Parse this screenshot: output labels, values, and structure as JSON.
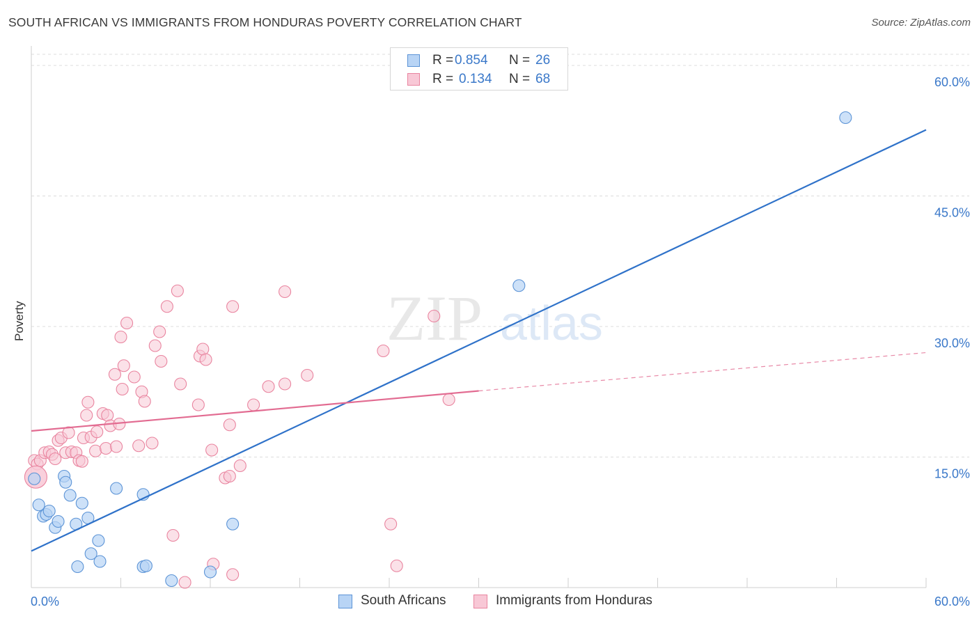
{
  "header": {
    "title": "SOUTH AFRICAN VS IMMIGRANTS FROM HONDURAS POVERTY CORRELATION CHART",
    "source": "Source: ZipAtlas.com"
  },
  "legend_top": {
    "rows": [
      {
        "r_label": "R =",
        "r_value": "0.854",
        "n_label": "N =",
        "n_value": "26"
      },
      {
        "r_label": "R =",
        "r_value": "0.134",
        "n_label": "N =",
        "n_value": "68"
      }
    ]
  },
  "legend_bottom": {
    "items": [
      {
        "label": "South Africans"
      },
      {
        "label": "Immigrants from Honduras"
      }
    ]
  },
  "colors": {
    "blue_fill": "#b8d4f5",
    "blue_stroke": "#5b93d6",
    "blue_line": "#2f72c9",
    "pink_fill": "#f8c8d6",
    "pink_stroke": "#e9849f",
    "pink_line": "#e26b91",
    "tick_label": "#3a78c9",
    "grid": "#dcdcdc",
    "watermark": "#e8e8e8"
  },
  "chart_data": {
    "type": "scatter",
    "title": "SOUTH AFRICAN VS IMMIGRANTS FROM HONDURAS POVERTY CORRELATION CHART",
    "xlabel": "",
    "ylabel": "Poverty",
    "xlim": [
      0,
      60
    ],
    "ylim": [
      0,
      60
    ],
    "x_tick_labels": [
      "0.0%",
      "60.0%"
    ],
    "y_tick_labels": [
      "15.0%",
      "30.0%",
      "45.0%",
      "60.0%"
    ],
    "y_ticks": [
      15,
      30,
      45,
      60
    ],
    "grid": true,
    "legend_position": "bottom",
    "watermark": "ZIPatlas",
    "series": [
      {
        "name": "South Africans",
        "r": 0.854,
        "n": 26,
        "trend": {
          "x": [
            0,
            60
          ],
          "y": [
            4.2,
            52.6
          ],
          "dashed_beyond": null
        },
        "points": [
          [
            0.2,
            12.5
          ],
          [
            0.5,
            9.5
          ],
          [
            0.8,
            8.2
          ],
          [
            1.0,
            8.4
          ],
          [
            1.2,
            8.8
          ],
          [
            1.6,
            6.9
          ],
          [
            1.8,
            7.6
          ],
          [
            2.2,
            12.8
          ],
          [
            2.3,
            12.1
          ],
          [
            2.6,
            10.6
          ],
          [
            3.0,
            7.3
          ],
          [
            3.4,
            9.7
          ],
          [
            3.8,
            8.0
          ],
          [
            3.1,
            2.4
          ],
          [
            4.0,
            3.9
          ],
          [
            4.5,
            5.4
          ],
          [
            4.6,
            3.0
          ],
          [
            5.7,
            11.4
          ],
          [
            7.5,
            10.7
          ],
          [
            7.5,
            2.4
          ],
          [
            7.7,
            2.5
          ],
          [
            9.4,
            0.8
          ],
          [
            12.0,
            1.8
          ],
          [
            13.5,
            7.3
          ],
          [
            32.7,
            34.7
          ],
          [
            54.6,
            54.0
          ]
        ]
      },
      {
        "name": "Immigrants from Honduras",
        "r": 0.134,
        "n": 68,
        "trend": {
          "x": [
            0,
            30
          ],
          "y": [
            18.0,
            22.6
          ],
          "dashed_x": [
            30,
            60
          ],
          "dashed_y": [
            22.6,
            27.0
          ]
        },
        "points": [
          [
            0.2,
            14.6
          ],
          [
            0.4,
            14.2
          ],
          [
            0.6,
            14.6
          ],
          [
            0.9,
            15.5
          ],
          [
            1.2,
            15.6
          ],
          [
            1.4,
            15.3
          ],
          [
            1.6,
            14.8
          ],
          [
            1.8,
            16.9
          ],
          [
            2.0,
            17.2
          ],
          [
            2.3,
            15.5
          ],
          [
            2.5,
            17.8
          ],
          [
            2.7,
            15.6
          ],
          [
            3.0,
            15.5
          ],
          [
            3.2,
            14.6
          ],
          [
            3.4,
            14.5
          ],
          [
            3.5,
            17.2
          ],
          [
            3.7,
            19.8
          ],
          [
            3.8,
            21.3
          ],
          [
            4.0,
            17.3
          ],
          [
            4.3,
            15.7
          ],
          [
            4.4,
            17.9
          ],
          [
            4.8,
            20.0
          ],
          [
            5.0,
            16.0
          ],
          [
            5.1,
            19.8
          ],
          [
            5.3,
            18.6
          ],
          [
            5.7,
            16.2
          ],
          [
            5.9,
            18.8
          ],
          [
            6.0,
            28.8
          ],
          [
            6.1,
            22.8
          ],
          [
            6.2,
            25.5
          ],
          [
            6.4,
            30.4
          ],
          [
            5.6,
            24.5
          ],
          [
            6.9,
            24.2
          ],
          [
            7.2,
            16.3
          ],
          [
            7.4,
            22.5
          ],
          [
            7.6,
            21.4
          ],
          [
            8.1,
            16.6
          ],
          [
            8.3,
            27.8
          ],
          [
            8.6,
            29.4
          ],
          [
            8.7,
            26.0
          ],
          [
            9.1,
            32.3
          ],
          [
            9.5,
            6.0
          ],
          [
            9.8,
            34.1
          ],
          [
            10.0,
            23.4
          ],
          [
            10.3,
            0.6
          ],
          [
            11.2,
            21.0
          ],
          [
            11.3,
            26.6
          ],
          [
            11.5,
            27.4
          ],
          [
            11.7,
            26.2
          ],
          [
            12.1,
            15.8
          ],
          [
            12.2,
            2.7
          ],
          [
            13.0,
            12.6
          ],
          [
            13.3,
            12.8
          ],
          [
            13.3,
            18.7
          ],
          [
            13.5,
            32.3
          ],
          [
            13.5,
            1.5
          ],
          [
            14.0,
            14.0
          ],
          [
            14.9,
            21.0
          ],
          [
            15.9,
            23.1
          ],
          [
            17.0,
            23.4
          ],
          [
            17.0,
            34.0
          ],
          [
            18.5,
            24.4
          ],
          [
            23.6,
            27.2
          ],
          [
            24.1,
            7.3
          ],
          [
            24.5,
            2.5
          ],
          [
            27.0,
            31.2
          ],
          [
            28.0,
            21.6
          ],
          [
            0.3,
            12.7
          ]
        ]
      }
    ]
  }
}
